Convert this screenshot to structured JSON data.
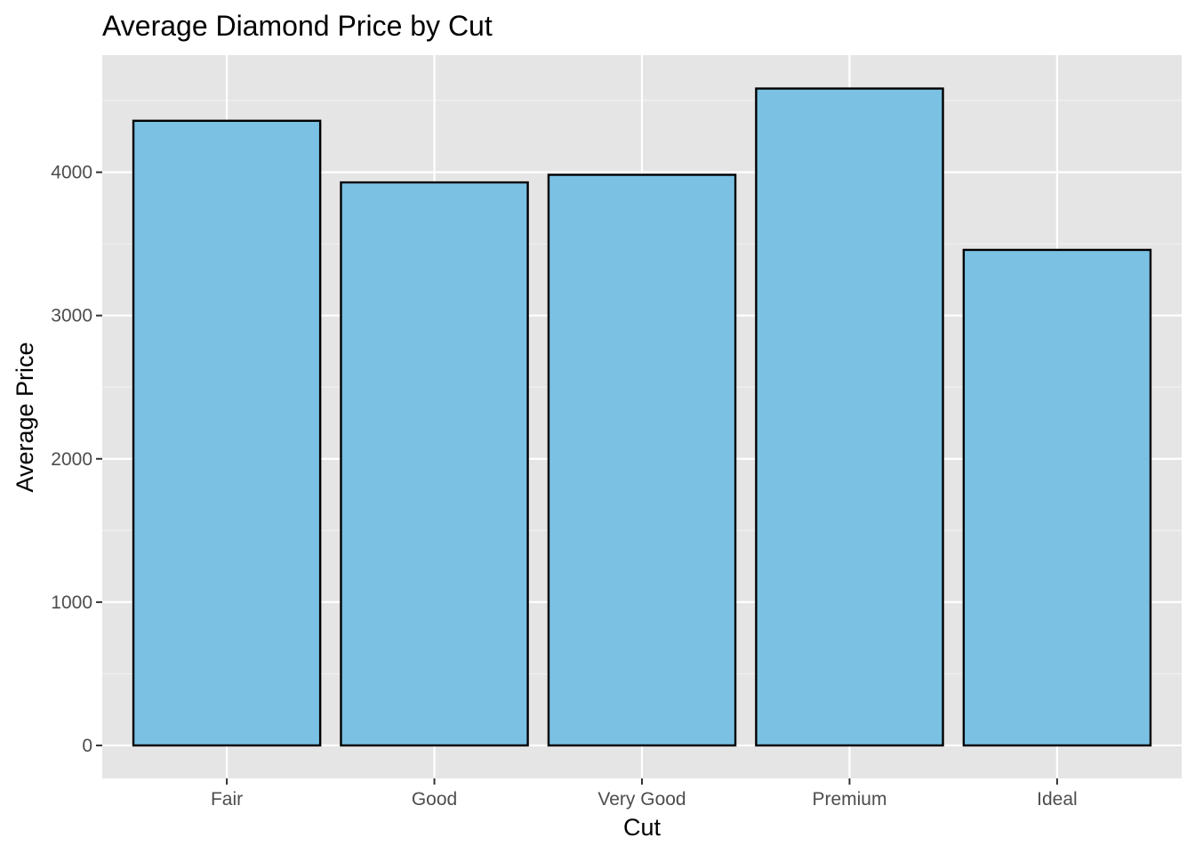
{
  "chart_data": {
    "type": "bar",
    "title": "Average Diamond Price by Cut",
    "xlabel": "Cut",
    "ylabel": "Average Price",
    "categories": [
      "Fair",
      "Good",
      "Very Good",
      "Premium",
      "Ideal"
    ],
    "values": [
      4359,
      3929,
      3982,
      4584,
      3458
    ],
    "ylim": [
      -230,
      4817
    ],
    "yticks": [
      0,
      1000,
      2000,
      3000,
      4000
    ],
    "ytick_labels": [
      "0",
      "1000",
      "2000",
      "3000",
      "4000"
    ],
    "grid": true,
    "legend": "none",
    "colors": {
      "bar_fill": "#7AC1E4",
      "bar_stroke": "#000000",
      "panel_background": "#E5E5E5",
      "grid_major": "#FFFFFF",
      "grid_minor": "#F2F2F2",
      "tick_text": "#4D4D4D",
      "tick_mark": "#333333"
    }
  }
}
